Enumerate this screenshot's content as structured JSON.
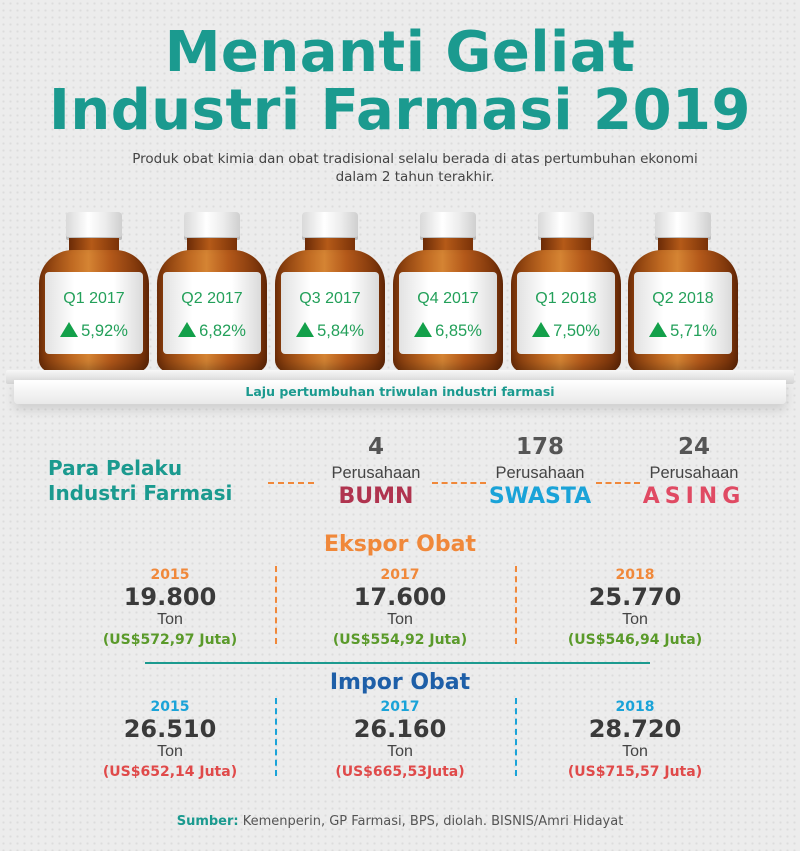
{
  "title_line1": "Menanti Geliat",
  "title_line2": "Industri Farmasi 2019",
  "subtitle": "Produk obat kimia dan obat tradisional selalu berada di atas pertumbuhan ekonomi dalam 2 tahun terakhir.",
  "bottles": [
    {
      "quarter": "Q1 2017",
      "growth": "5,92%"
    },
    {
      "quarter": "Q2 2017",
      "growth": "6,82%"
    },
    {
      "quarter": "Q3 2017",
      "growth": "5,84%"
    },
    {
      "quarter": "Q4 2017",
      "growth": "6,85%"
    },
    {
      "quarter": "Q1 2018",
      "growth": "7,50%"
    },
    {
      "quarter": "Q2 2018",
      "growth": "5,71%"
    }
  ],
  "shelf_caption": "Laju pertumbuhan triwulan industri farmasi",
  "pelaku": {
    "title_line1": "Para Pelaku",
    "title_line2": "Industri Farmasi",
    "groups": [
      {
        "count": "4",
        "label": "Perusahaan",
        "kind": "BUMN",
        "color": "#b0344f"
      },
      {
        "count": "178",
        "label": "Perusahaan",
        "kind": "SWASTA",
        "color": "#1aa3d8"
      },
      {
        "count": "24",
        "label": "Perusahaan",
        "kind": "ASING",
        "color": "#e04a63"
      }
    ]
  },
  "ekspor": {
    "title": "Ekspor Obat",
    "color": "#f0883a",
    "items": [
      {
        "year": "2015",
        "amount": "19.800",
        "unit": "Ton",
        "value": "(US$572,97 Juta)"
      },
      {
        "year": "2017",
        "amount": "17.600",
        "unit": "Ton",
        "value": "(US$554,92 Juta)"
      },
      {
        "year": "2018",
        "amount": "25.770",
        "unit": "Ton",
        "value": "(US$546,94 Juta)"
      }
    ],
    "value_color": "#5a9a2a"
  },
  "impor": {
    "title": "Impor Obat",
    "color": "#1e5fa8",
    "year_color": "#1aa3d8",
    "items": [
      {
        "year": "2015",
        "amount": "26.510",
        "unit": "Ton",
        "value": "(US$652,14 Juta)"
      },
      {
        "year": "2017",
        "amount": "26.160",
        "unit": "Ton",
        "value": "(US$665,53Juta)"
      },
      {
        "year": "2018",
        "amount": "28.720",
        "unit": "Ton",
        "value": "(US$715,57 Juta)"
      }
    ],
    "value_color": "#e04a4a"
  },
  "source": {
    "label": "Sumber:",
    "text": " Kemenperin, GP Farmasi, BPS, diolah. BISNIS/Amri Hidayat"
  },
  "colors": {
    "teal": "#1b9a8f",
    "green": "#23a05a",
    "orange": "#f0883a"
  }
}
